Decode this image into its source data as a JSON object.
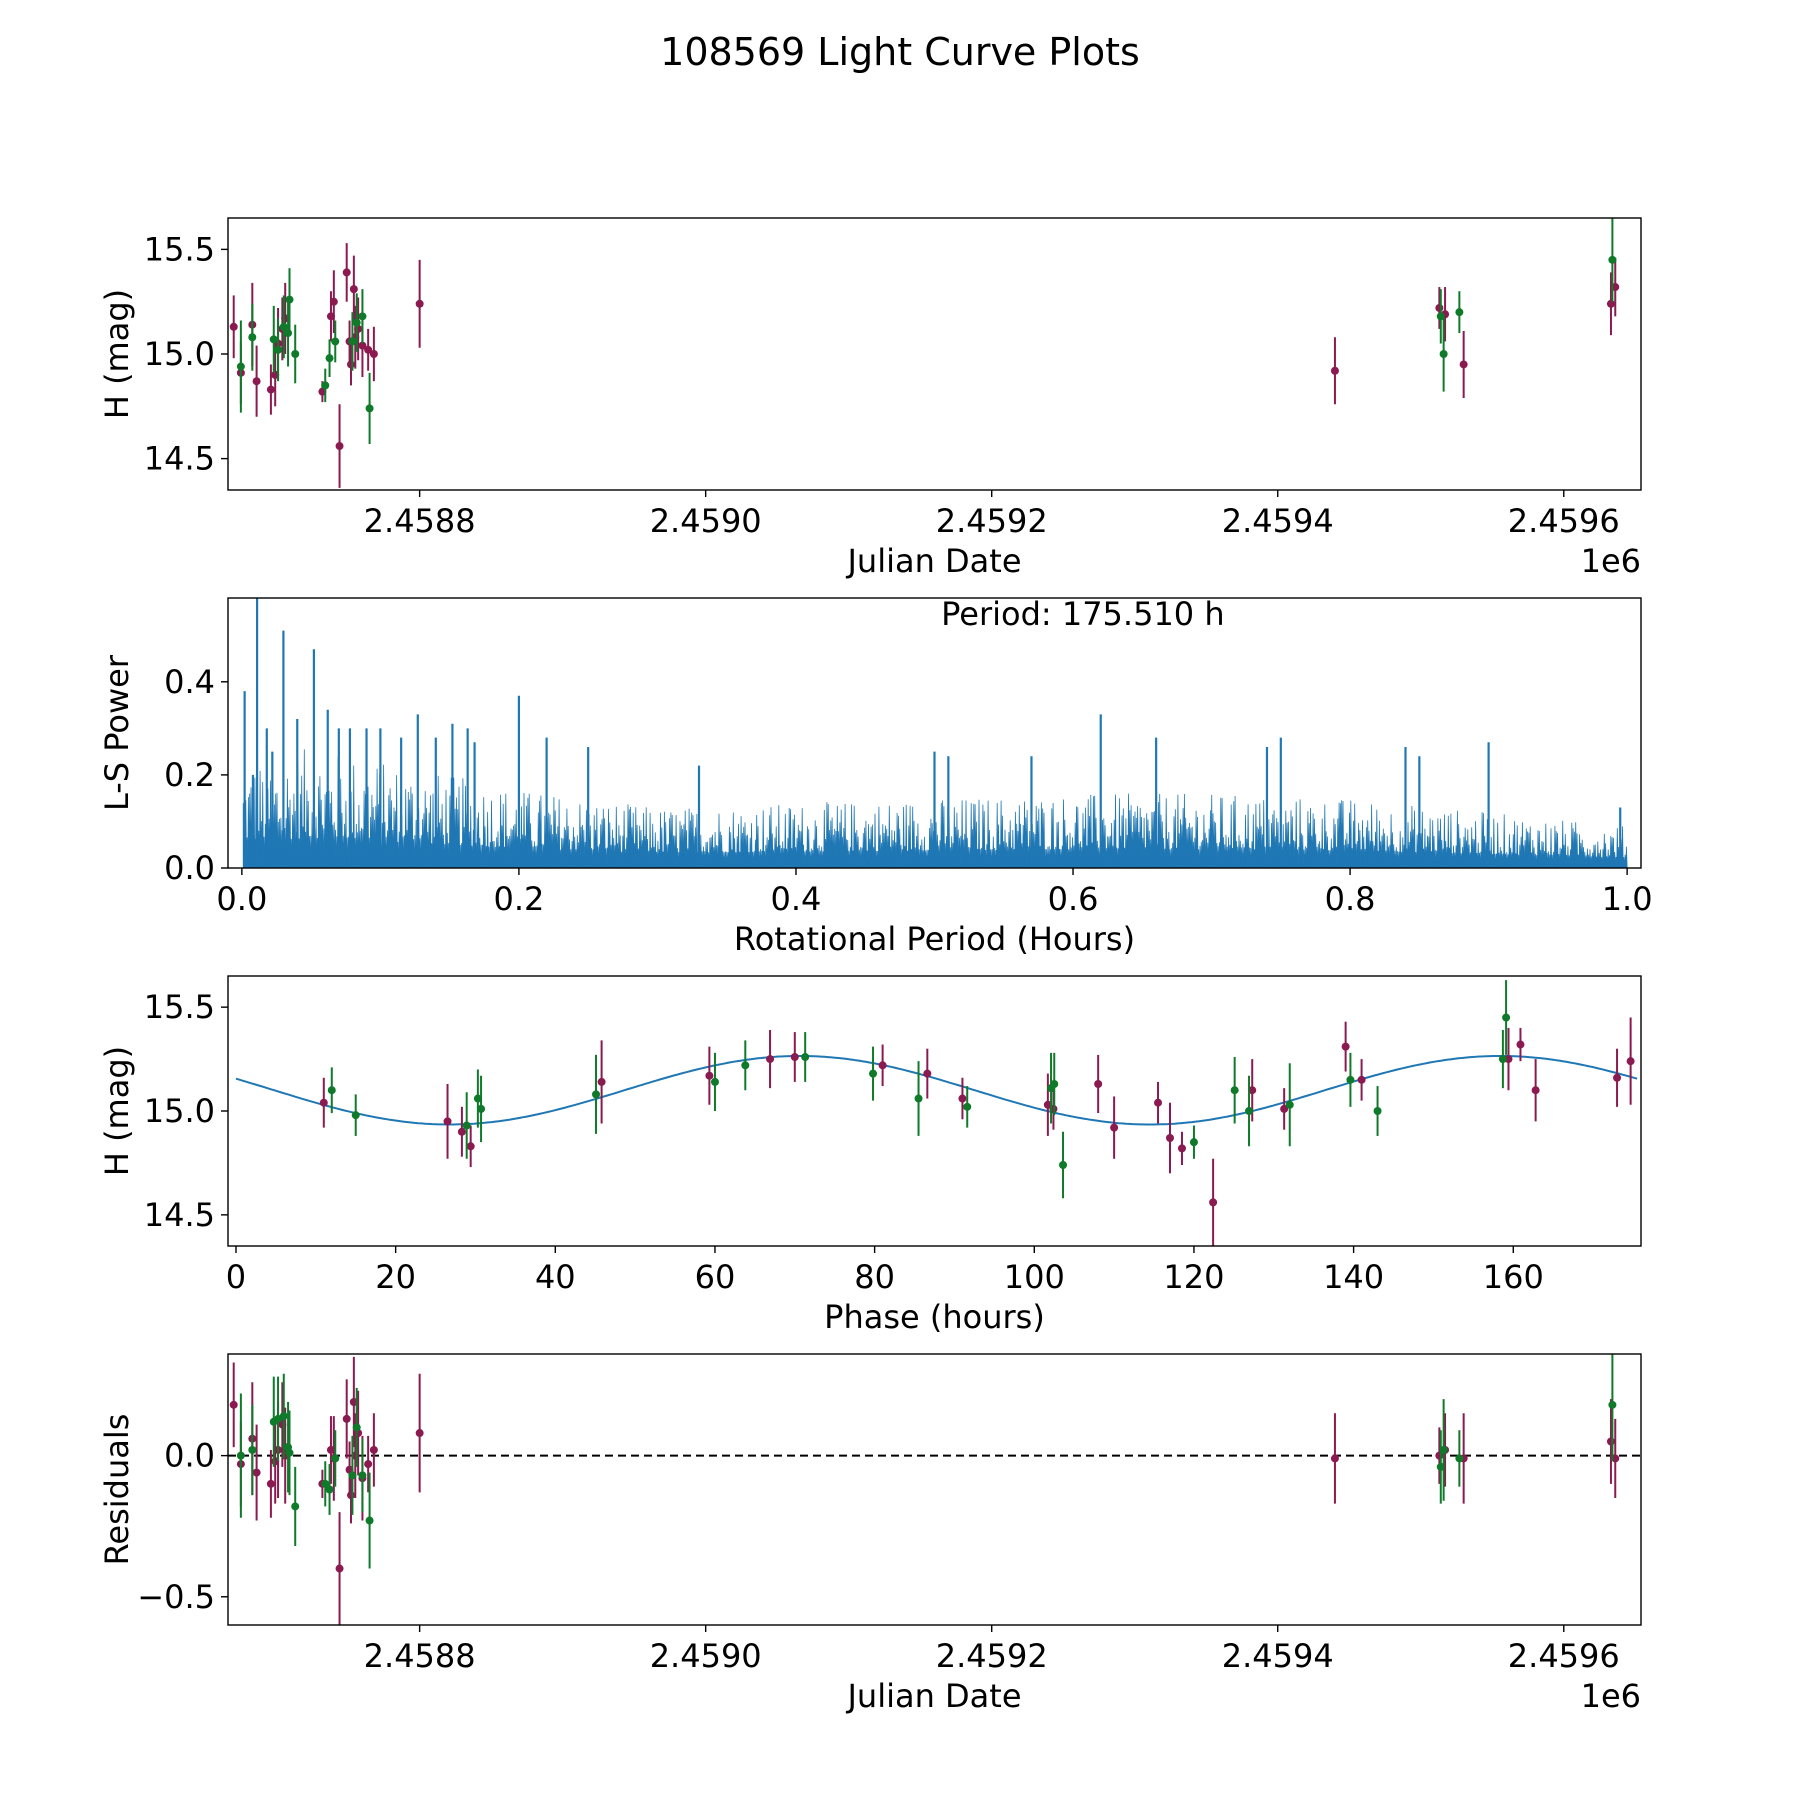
{
  "figure": {
    "title": "108569 Light Curve Plots"
  },
  "colors": {
    "filter_a": "#8b1a50",
    "filter_b": "#0e7a2a",
    "line": "#1f77b4",
    "axis": "#000000"
  },
  "chart_data": [
    {
      "id": "lightcurve",
      "type": "scatter",
      "xlabel": "Julian Date",
      "ylabel": "H (mag)",
      "x_offset_label": "1e6",
      "xlim": [
        2458666,
        2459654
      ],
      "ylim": [
        14.35,
        15.65
      ],
      "xticks": [
        2458800,
        2459000,
        2459200,
        2459400,
        2459600
      ],
      "xtick_labels": [
        "2.4588",
        "2.4590",
        "2.4592",
        "2.4594",
        "2.4596"
      ],
      "yticks": [
        14.5,
        15.0,
        15.5
      ],
      "ytick_labels": [
        "14.5",
        "15.0",
        "15.5"
      ],
      "series": [
        {
          "name": "filter_a",
          "color": "#8b1a50",
          "x": [
            2458670,
            2458675,
            2458683,
            2458686,
            2458696,
            2458699,
            2458701,
            2458704,
            2458706,
            2458732,
            2458738,
            2458740,
            2458744,
            2458749,
            2458751,
            2458752,
            2458754,
            2458755,
            2458757,
            2458760,
            2458764,
            2458768,
            2458800,
            2459440,
            2459513,
            2459517,
            2459530,
            2459633,
            2459636
          ],
          "y": [
            15.13,
            14.91,
            15.14,
            14.87,
            14.83,
            14.9,
            15.05,
            15.12,
            15.17,
            14.82,
            15.18,
            15.25,
            14.56,
            15.39,
            15.06,
            14.95,
            15.31,
            15.08,
            15.12,
            15.04,
            15.02,
            15.0,
            15.24,
            14.92,
            15.22,
            15.19,
            14.95,
            15.24,
            15.32
          ],
          "err": [
            0.15,
            0.15,
            0.2,
            0.17,
            0.12,
            0.15,
            0.17,
            0.15,
            0.17,
            0.05,
            0.12,
            0.15,
            0.2,
            0.14,
            0.1,
            0.1,
            0.16,
            0.15,
            0.15,
            0.15,
            0.1,
            0.13,
            0.21,
            0.16,
            0.1,
            0.13,
            0.16,
            0.15,
            0.14
          ]
        },
        {
          "name": "filter_b",
          "color": "#0e7a2a",
          "x": [
            2458675,
            2458683,
            2458698,
            2458701,
            2458705,
            2458708,
            2458709,
            2458713,
            2458734,
            2458737,
            2458741,
            2458753,
            2458756,
            2458760,
            2458765,
            2459514,
            2459516,
            2459527,
            2459634
          ],
          "y": [
            14.94,
            15.08,
            15.07,
            15.02,
            15.13,
            15.1,
            15.26,
            15.0,
            14.85,
            14.98,
            15.06,
            15.06,
            15.15,
            15.18,
            14.74,
            15.18,
            15.0,
            15.2,
            15.45
          ],
          "err": [
            0.22,
            0.16,
            0.16,
            0.15,
            0.15,
            0.16,
            0.15,
            0.14,
            0.08,
            0.09,
            0.1,
            0.14,
            0.14,
            0.13,
            0.17,
            0.13,
            0.18,
            0.1,
            0.2
          ]
        }
      ]
    },
    {
      "id": "periodogram",
      "type": "line",
      "xlabel": "Rotational Period (Hours)",
      "ylabel": "L-S Power",
      "annotation": "Period: 175.510 h",
      "xlim": [
        -0.01,
        1.01
      ],
      "ylim": [
        0,
        0.58
      ],
      "xticks": [
        0,
        0.2,
        0.4,
        0.6,
        0.8,
        1.0
      ],
      "xtick_labels": [
        "0.0",
        "0.2",
        "0.4",
        "0.6",
        "0.8",
        "1.0"
      ],
      "yticks": [
        0,
        0.2,
        0.4
      ],
      "ytick_labels": [
        "0.0",
        "0.2",
        "0.4"
      ],
      "x_range": [
        0.001,
        1.0
      ],
      "envelope_x": [
        0.0,
        0.05,
        0.1,
        0.2,
        0.3,
        0.4,
        0.5,
        0.6,
        0.7,
        0.8,
        0.9,
        1.0
      ],
      "envelope_y": [
        0.22,
        0.26,
        0.23,
        0.17,
        0.13,
        0.14,
        0.15,
        0.16,
        0.16,
        0.15,
        0.12,
        0.09
      ],
      "peaks": {
        "x": [
          0.002,
          0.008,
          0.011,
          0.018,
          0.022,
          0.03,
          0.04,
          0.052,
          0.062,
          0.07,
          0.078,
          0.09,
          0.1,
          0.115,
          0.127,
          0.14,
          0.152,
          0.163,
          0.168,
          0.2,
          0.22,
          0.25,
          0.33,
          0.5,
          0.51,
          0.57,
          0.62,
          0.66,
          0.74,
          0.75,
          0.84,
          0.85,
          0.9,
          0.995
        ],
        "y": [
          0.38,
          0.2,
          0.58,
          0.3,
          0.25,
          0.51,
          0.32,
          0.47,
          0.34,
          0.3,
          0.3,
          0.3,
          0.3,
          0.28,
          0.33,
          0.28,
          0.31,
          0.3,
          0.27,
          0.37,
          0.28,
          0.26,
          0.22,
          0.25,
          0.24,
          0.24,
          0.33,
          0.28,
          0.26,
          0.28,
          0.26,
          0.24,
          0.27,
          0.13
        ]
      }
    },
    {
      "id": "phased",
      "type": "scatter",
      "xlabel": "Phase (hours)",
      "ylabel": "H (mag)",
      "xlim": [
        -1,
        176
      ],
      "ylim": [
        14.35,
        15.65
      ],
      "xticks": [
        0,
        20,
        40,
        60,
        80,
        100,
        120,
        140,
        160
      ],
      "xtick_labels": [
        "0",
        "20",
        "40",
        "60",
        "80",
        "100",
        "120",
        "140",
        "160"
      ],
      "yticks": [
        14.5,
        15.0,
        15.5
      ],
      "ytick_labels": [
        "14.5",
        "15.0",
        "15.5"
      ],
      "model": {
        "period": 87.755,
        "mean": 15.1,
        "amplitude": 0.165,
        "peak_phase": 70.6,
        "x_range": [
          0,
          175.51
        ]
      },
      "series": [
        {
          "name": "filter_a",
          "color": "#8b1a50",
          "x": [
            11,
            26.5,
            28.3,
            29.4,
            45.8,
            59.3,
            66.9,
            70,
            81,
            86.6,
            91,
            101.7,
            102.4,
            108,
            110,
            115.5,
            117,
            118.5,
            122.4,
            127.3,
            131.3,
            139,
            141,
            159.4,
            160.9,
            162.8,
            173,
            174.7
          ],
          "y": [
            15.04,
            14.95,
            14.9,
            14.83,
            15.14,
            15.17,
            15.25,
            15.26,
            15.22,
            15.18,
            15.06,
            15.03,
            15.01,
            15.13,
            14.92,
            15.04,
            14.87,
            14.82,
            14.56,
            15.1,
            15.01,
            15.31,
            15.15,
            15.25,
            15.32,
            15.1,
            15.16,
            15.24
          ],
          "err": [
            0.12,
            0.18,
            0.12,
            0.1,
            0.2,
            0.14,
            0.14,
            0.12,
            0.1,
            0.12,
            0.1,
            0.15,
            0.1,
            0.14,
            0.15,
            0.1,
            0.17,
            0.08,
            0.21,
            0.15,
            0.1,
            0.12,
            0.1,
            0.15,
            0.08,
            0.15,
            0.14,
            0.21
          ]
        },
        {
          "name": "filter_b",
          "color": "#0e7a2a",
          "x": [
            12,
            15,
            28.9,
            30.3,
            30.7,
            45.1,
            60,
            63.8,
            71.3,
            79.8,
            85.5,
            91.6,
            102.1,
            102.5,
            103.6,
            120,
            125.1,
            126.9,
            132,
            139.6,
            143,
            158.7,
            159.1
          ],
          "y": [
            15.1,
            14.98,
            14.93,
            15.06,
            15.01,
            15.08,
            15.14,
            15.22,
            15.26,
            15.18,
            15.06,
            15.02,
            15.11,
            15.13,
            14.74,
            14.85,
            15.1,
            15.0,
            15.03,
            15.15,
            15.0,
            15.25,
            15.45
          ],
          "err": [
            0.11,
            0.1,
            0.16,
            0.14,
            0.16,
            0.19,
            0.14,
            0.12,
            0.12,
            0.13,
            0.18,
            0.1,
            0.17,
            0.15,
            0.16,
            0.08,
            0.16,
            0.17,
            0.2,
            0.13,
            0.12,
            0.14,
            0.18
          ]
        }
      ]
    },
    {
      "id": "residuals",
      "type": "scatter",
      "xlabel": "Julian Date",
      "ylabel": "Residuals",
      "x_offset_label": "1e6",
      "xlim": [
        2458666,
        2459654
      ],
      "ylim": [
        -0.6,
        0.36
      ],
      "xticks": [
        2458800,
        2459000,
        2459200,
        2459400,
        2459600
      ],
      "xtick_labels": [
        "2.4588",
        "2.4590",
        "2.4592",
        "2.4594",
        "2.4596"
      ],
      "yticks": [
        -0.5,
        0.0
      ],
      "ytick_labels": [
        "−0.5",
        "0.0"
      ],
      "zero_line": 0,
      "series": [
        {
          "name": "filter_a",
          "color": "#8b1a50",
          "x": [
            2458670,
            2458675,
            2458683,
            2458686,
            2458696,
            2458699,
            2458701,
            2458704,
            2458706,
            2458732,
            2458738,
            2458740,
            2458744,
            2458749,
            2458751,
            2458752,
            2458754,
            2458755,
            2458757,
            2458760,
            2458764,
            2458768,
            2458800,
            2459440,
            2459513,
            2459517,
            2459530,
            2459633,
            2459636
          ],
          "y": [
            0.18,
            -0.03,
            0.06,
            -0.06,
            -0.1,
            -0.02,
            0.02,
            0.11,
            0.0,
            -0.1,
            0.02,
            -0.01,
            -0.4,
            0.13,
            -0.05,
            -0.14,
            0.19,
            0.0,
            0.08,
            -0.08,
            -0.03,
            0.02,
            0.08,
            -0.01,
            0.0,
            0.02,
            -0.01,
            0.05,
            -0.01
          ],
          "err": [
            0.15,
            0.15,
            0.2,
            0.17,
            0.12,
            0.15,
            0.17,
            0.15,
            0.17,
            0.05,
            0.12,
            0.15,
            0.2,
            0.14,
            0.1,
            0.1,
            0.16,
            0.15,
            0.15,
            0.15,
            0.1,
            0.13,
            0.21,
            0.16,
            0.1,
            0.13,
            0.16,
            0.15,
            0.14
          ]
        },
        {
          "name": "filter_b",
          "color": "#0e7a2a",
          "x": [
            2458675,
            2458683,
            2458698,
            2458701,
            2458705,
            2458708,
            2458709,
            2458713,
            2458734,
            2458737,
            2458741,
            2458753,
            2458756,
            2458760,
            2458765,
            2459514,
            2459516,
            2459527,
            2459634
          ],
          "y": [
            0.0,
            0.02,
            0.12,
            0.13,
            0.14,
            0.03,
            0.01,
            -0.18,
            -0.1,
            -0.12,
            -0.01,
            -0.07,
            0.1,
            -0.07,
            -0.23,
            -0.04,
            0.02,
            -0.01,
            0.18
          ],
          "err": [
            0.22,
            0.16,
            0.16,
            0.15,
            0.15,
            0.16,
            0.15,
            0.14,
            0.08,
            0.09,
            0.1,
            0.14,
            0.14,
            0.13,
            0.17,
            0.13,
            0.18,
            0.1,
            0.2
          ]
        }
      ]
    }
  ]
}
